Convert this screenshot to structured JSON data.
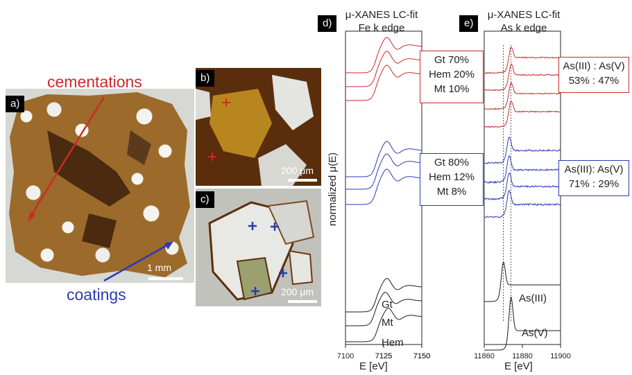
{
  "colors": {
    "red": "#cc2a2a",
    "blue": "#2b3ab5",
    "black": "#1a1a1a"
  },
  "panel_a": {
    "label": "a)",
    "cementations_label": "cementations",
    "coatings_label": "coatings",
    "scale_label": "1 mm"
  },
  "panel_b": {
    "label": "b)",
    "scale_label": "200 μm"
  },
  "panel_c": {
    "label": "c)",
    "scale_label": "200 μm"
  },
  "ylabel": "normalized μ(E)",
  "chart_data": [
    {
      "type": "line",
      "panel_label": "d)",
      "title": "μ-XANES LC-fit",
      "subtitle": "Fe k edge",
      "xlabel": "E [eV]",
      "ylabel": "normalized μ(E)",
      "xlim": [
        7100,
        7150
      ],
      "x_ticks": [
        "7100",
        "7125",
        "7150",
        "7125",
        "7150"
      ],
      "series": [
        {
          "name": "Gt",
          "group": "reference",
          "edge": 7120
        },
        {
          "name": "Mt",
          "group": "reference",
          "edge": 7119
        },
        {
          "name": "Hem",
          "group": "reference",
          "edge": 7121
        },
        {
          "group": "coatings",
          "count": 3,
          "edge": 7120
        },
        {
          "group": "cementations",
          "count": 3,
          "edge": 7120
        }
      ],
      "fit_boxes": [
        {
          "group": "cementations",
          "lines": [
            "Gt 70%",
            "Hem 20%",
            "Mt 10%"
          ]
        },
        {
          "group": "coatings",
          "lines": [
            "Gt 80%",
            "Hem 12%",
            "Mt 8%"
          ]
        }
      ]
    },
    {
      "type": "line",
      "panel_label": "e)",
      "title": "μ-XANES LC-fit",
      "subtitle": "As k edge",
      "xlabel": "E [eV]",
      "xlim": [
        11860,
        11900
      ],
      "x_ticks": [
        "11860",
        "11880",
        "11900"
      ],
      "reference_lines": [
        11870,
        11874
      ],
      "series": [
        {
          "name": "As(III)",
          "group": "reference",
          "peak": 11870
        },
        {
          "name": "As(V)",
          "group": "reference",
          "peak": 11874
        },
        {
          "group": "coatings",
          "count": 4
        },
        {
          "group": "cementations",
          "count": 4
        }
      ],
      "fit_boxes": [
        {
          "group": "cementations",
          "lines": [
            "As(III) : As(V)",
            "53% : 47%"
          ]
        },
        {
          "group": "coatings",
          "lines": [
            "As(III): As(V)",
            "71% : 29%"
          ]
        }
      ]
    }
  ]
}
